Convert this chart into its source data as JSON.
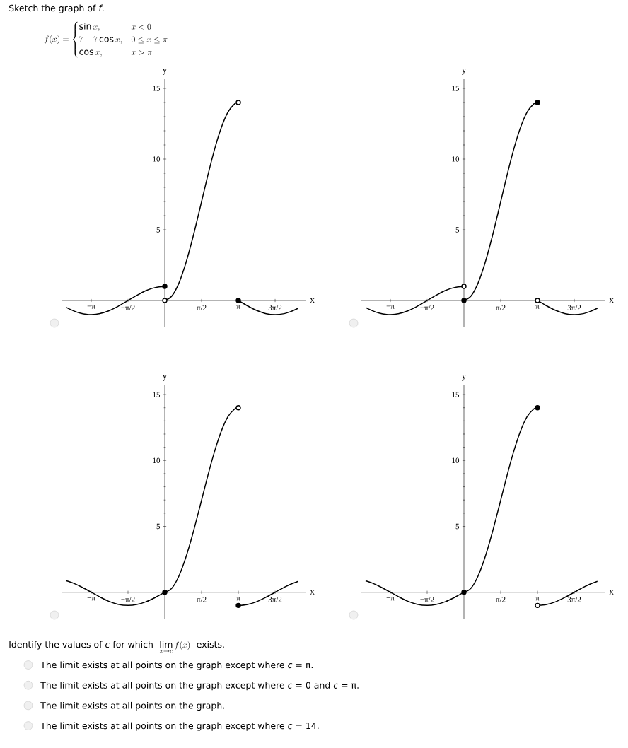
{
  "chart_data": [
    {
      "type": "other",
      "title": "Sketch the graph of *f*.",
      "annotations": [
        "f(x) = \\begin{cases} \\sin x, & x < 0 \\\\ 7 - 7\\cos x, & 0 \\le x \\le \\pi \\\\ \\cos x, & x > \\pi \\end{cases}"
      ]
    },
    {
      "type": "line",
      "xlabel": "x",
      "ylabel": "y",
      "xlim": [
        -4.41,
        6.01
      ],
      "ylim": [
        -1.85,
        15.65
      ],
      "xticks": [
        {
          "value": -3.1416,
          "label": "−π"
        },
        {
          "value": -1.5708,
          "label": "−π/2"
        },
        {
          "value": 1.5708,
          "label": "π/2"
        },
        {
          "value": 3.1416,
          "label": "π"
        },
        {
          "value": 4.7124,
          "label": "3π/2"
        }
      ],
      "yticks": [
        5,
        10,
        15
      ],
      "series": [
        {
          "x": [
            -4.2,
            -3.9,
            -3.6,
            -3.3,
            -3.1416,
            -2.8,
            -2.4,
            -2.0,
            -1.6,
            -1.2,
            -0.8,
            -0.4,
            0
          ],
          "values": [
            -0.49,
            -0.73,
            -0.9,
            -0.99,
            -1,
            -0.94,
            -0.74,
            -0.42,
            -0.03,
            0.36,
            0.7,
            0.92,
            1
          ],
          "color": "#000000"
        },
        {
          "x": [
            0,
            0.3,
            0.6,
            0.9,
            1.2,
            1.5,
            1.8,
            2.1,
            2.4,
            2.7,
            3.0,
            3.1416
          ],
          "values": [
            0,
            0.31,
            1.22,
            2.65,
            4.46,
            6.5,
            8.59,
            10.53,
            12.16,
            13.33,
            13.93,
            14
          ],
          "color": "#000000"
        },
        {
          "x": [
            3.1416,
            3.5,
            3.9,
            4.3,
            4.7124,
            5.1,
            5.4,
            5.7
          ],
          "values": [
            0,
            -0.35,
            -0.69,
            -0.92,
            -1,
            -0.93,
            -0.77,
            -0.55
          ],
          "color": "#000000"
        },
        {
          "type": "scatter",
          "x": [
            0,
            3.1416
          ],
          "values": [
            1,
            0
          ],
          "color": "#000000",
          "marker": "circle"
        },
        {
          "type": "scatter",
          "x": [
            0,
            3.1416
          ],
          "values": [
            0,
            14
          ],
          "color": "#000000",
          "marker": "circle"
        }
      ]
    },
    {
      "type": "line",
      "xlabel": "x",
      "ylabel": "y",
      "xlim": [
        -4.41,
        6.01
      ],
      "ylim": [
        -1.85,
        15.65
      ],
      "xticks": [
        {
          "value": -3.1416,
          "label": "−π"
        },
        {
          "value": -1.5708,
          "label": "−π/2"
        },
        {
          "value": 1.5708,
          "label": "π/2"
        },
        {
          "value": 3.1416,
          "label": "π"
        },
        {
          "value": 4.7124,
          "label": "3π/2"
        }
      ],
      "yticks": [
        5,
        10,
        15
      ],
      "series": [
        {
          "x": [
            -4.2,
            -3.9,
            -3.6,
            -3.3,
            -3.1416,
            -2.8,
            -2.4,
            -2.0,
            -1.6,
            -1.2,
            -0.8,
            -0.4,
            0
          ],
          "values": [
            -0.49,
            -0.73,
            -0.9,
            -0.99,
            -1,
            -0.94,
            -0.74,
            -0.42,
            -0.03,
            0.36,
            0.7,
            0.92,
            1
          ],
          "color": "#000000"
        },
        {
          "x": [
            0,
            0.3,
            0.6,
            0.9,
            1.2,
            1.5,
            1.8,
            2.1,
            2.4,
            2.7,
            3.0,
            3.1416
          ],
          "values": [
            0,
            0.31,
            1.22,
            2.65,
            4.46,
            6.5,
            8.59,
            10.53,
            12.16,
            13.33,
            13.93,
            14
          ],
          "color": "#000000"
        },
        {
          "x": [
            3.1416,
            3.5,
            3.9,
            4.3,
            4.7124,
            5.1,
            5.4,
            5.7
          ],
          "values": [
            0,
            -0.35,
            -0.69,
            -0.92,
            -1,
            -0.93,
            -0.77,
            -0.55
          ],
          "color": "#000000"
        },
        {
          "type": "scatter",
          "x": [
            0,
            3.1416
          ],
          "values": [
            0,
            14
          ],
          "color": "#000000",
          "marker": "circle"
        },
        {
          "type": "scatter",
          "x": [
            0,
            3.1416
          ],
          "values": [
            1,
            0
          ],
          "color": "#000000",
          "marker": "circle"
        }
      ]
    },
    {
      "type": "line",
      "xlabel": "x",
      "ylabel": "y",
      "xlim": [
        -4.41,
        6.01
      ],
      "ylim": [
        -2.0,
        15.7
      ],
      "xticks": [
        {
          "value": -3.1416,
          "label": "−π"
        },
        {
          "value": -1.5708,
          "label": "−π/2"
        },
        {
          "value": 1.5708,
          "label": "π/2"
        },
        {
          "value": 3.1416,
          "label": "π"
        },
        {
          "value": 4.7124,
          "label": "3π/2"
        }
      ],
      "yticks": [
        5,
        10,
        15
      ],
      "series": [
        {
          "x": [
            -4.2,
            -3.9,
            -3.6,
            -3.3,
            -3.1416,
            -2.8,
            -2.4,
            -2.0,
            -1.5708,
            -1.2,
            -0.8,
            -0.4,
            0
          ],
          "values": [
            0.87,
            0.69,
            0.44,
            0.16,
            0,
            -0.33,
            -0.68,
            -0.91,
            -1,
            -0.93,
            -0.72,
            -0.39,
            0
          ],
          "color": "#000000"
        },
        {
          "x": [
            0,
            0.3,
            0.6,
            0.9,
            1.2,
            1.5,
            1.8,
            2.1,
            2.4,
            2.7,
            3.0,
            3.1416
          ],
          "values": [
            0,
            0.31,
            1.22,
            2.65,
            4.46,
            6.5,
            8.59,
            10.53,
            12.16,
            13.33,
            13.93,
            14
          ],
          "color": "#000000"
        },
        {
          "x": [
            3.1416,
            3.5,
            3.9,
            4.3,
            4.7124,
            5.1,
            5.4,
            5.7
          ],
          "values": [
            -1,
            -0.94,
            -0.73,
            -0.4,
            0,
            0.38,
            0.63,
            0.83
          ],
          "color": "#000000"
        },
        {
          "type": "scatter",
          "x": [
            0,
            3.1416
          ],
          "values": [
            0,
            -1
          ],
          "color": "#000000",
          "marker": "circle"
        },
        {
          "type": "scatter",
          "x": [
            3.1416
          ],
          "values": [
            14
          ],
          "color": "#000000",
          "marker": "circle"
        }
      ]
    },
    {
      "type": "line",
      "xlabel": "x",
      "ylabel": "y",
      "xlim": [
        -4.41,
        6.01
      ],
      "ylim": [
        -2.0,
        15.7
      ],
      "xticks": [
        {
          "value": -3.1416,
          "label": "−π"
        },
        {
          "value": -1.5708,
          "label": "−π/2"
        },
        {
          "value": 1.5708,
          "label": "π/2"
        },
        {
          "value": 3.1416,
          "label": "π"
        },
        {
          "value": 4.7124,
          "label": "3π/2"
        }
      ],
      "yticks": [
        5,
        10,
        15
      ],
      "series": [
        {
          "x": [
            -4.2,
            -3.9,
            -3.6,
            -3.3,
            -3.1416,
            -2.8,
            -2.4,
            -2.0,
            -1.5708,
            -1.2,
            -0.8,
            -0.4,
            0
          ],
          "values": [
            0.87,
            0.69,
            0.44,
            0.16,
            0,
            -0.33,
            -0.68,
            -0.91,
            -1,
            -0.93,
            -0.72,
            -0.39,
            0
          ],
          "color": "#000000"
        },
        {
          "x": [
            0,
            0.3,
            0.6,
            0.9,
            1.2,
            1.5,
            1.8,
            2.1,
            2.4,
            2.7,
            3.0,
            3.1416
          ],
          "values": [
            0,
            0.31,
            1.22,
            2.65,
            4.46,
            6.5,
            8.59,
            10.53,
            12.16,
            13.33,
            13.93,
            14
          ],
          "color": "#000000"
        },
        {
          "x": [
            3.1416,
            3.5,
            3.9,
            4.3,
            4.7124,
            5.1,
            5.4,
            5.7
          ],
          "values": [
            -1,
            -0.94,
            -0.73,
            -0.4,
            0,
            0.38,
            0.63,
            0.83
          ],
          "color": "#000000"
        },
        {
          "type": "scatter",
          "x": [
            0,
            3.1416
          ],
          "values": [
            0,
            14
          ],
          "color": "#000000",
          "marker": "circle"
        },
        {
          "type": "scatter",
          "x": [
            3.1416
          ],
          "values": [
            -1
          ],
          "color": "#000000",
          "marker": "circle"
        }
      ]
    },
    {
      "type": "other",
      "title": "Identify the values of *c* for which",
      "annotations": [
        "\\lim_{x \\to c} f(x)",
        "exists.",
        "The limit exists at all points on the graph except where *c* = π.",
        "The limit exists at all points on the graph except where *c* = 0 and *c* = π.",
        "The limit exists at all points on the graph.",
        "The limit exists at all points on the graph except where *c* = 14."
      ]
    }
  ]
}
